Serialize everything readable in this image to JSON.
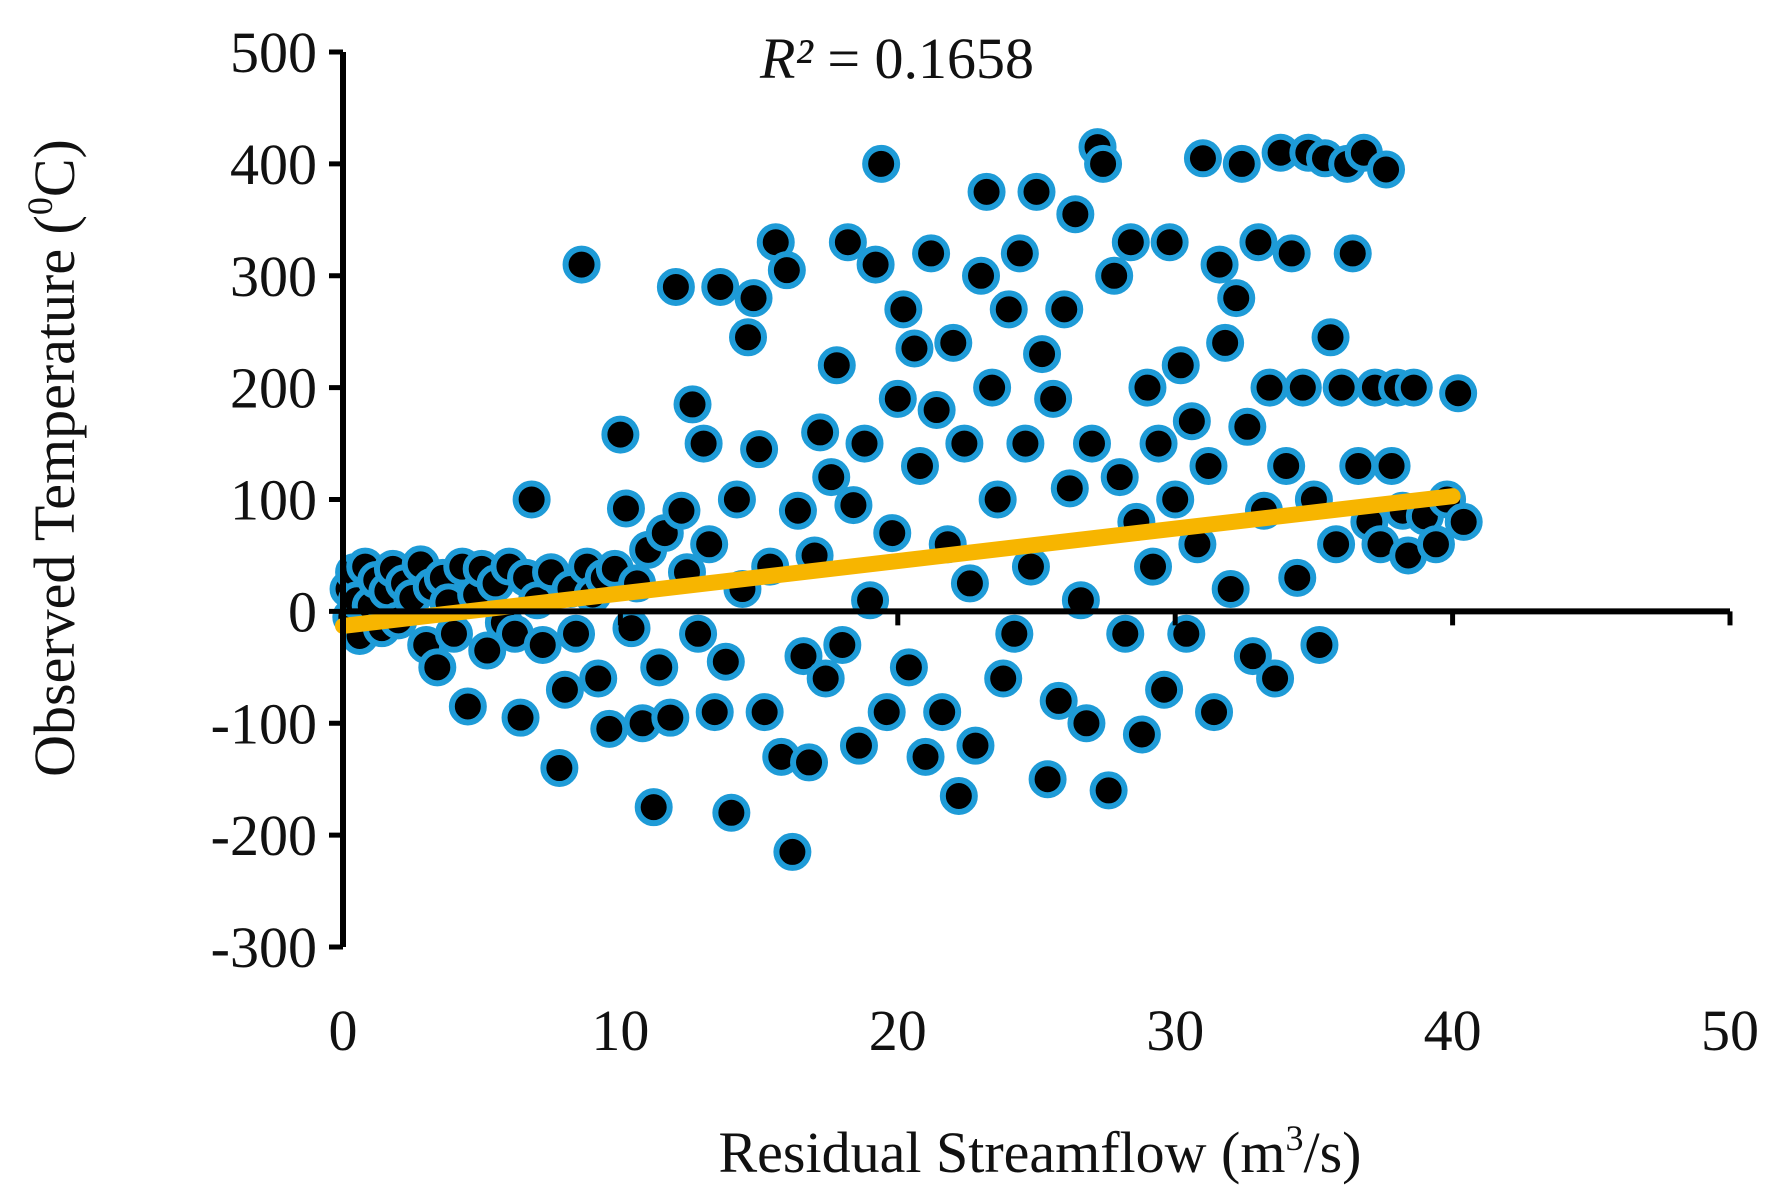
{
  "chart_data": {
    "type": "scatter",
    "title": "",
    "xlabel": "Residual Streamflow (m³/s)",
    "ylabel": "Observed  Temperature (⁰C)",
    "xlabel_parts": {
      "base": "Residual Streamflow (m",
      "superscript": "3",
      "suffix": "/s)"
    },
    "ylabel_parts": {
      "base": "Observed  Temperature (",
      "superscript": "0",
      "suffix": "C)"
    },
    "annotation": {
      "italic_part": "R²",
      "plain_part": " = 0.1658",
      "full": "R² = 0.1658"
    },
    "xlim": [
      0,
      50
    ],
    "ylim": [
      -300,
      500
    ],
    "x_ticks": [
      0,
      10,
      20,
      30,
      40,
      50
    ],
    "y_ticks": [
      -300,
      -200,
      -100,
      0,
      100,
      200,
      300,
      400,
      500
    ],
    "x_tick_labels": [
      "0",
      "10",
      "20",
      "30",
      "40",
      "50"
    ],
    "y_tick_labels": [
      "-300",
      "-200",
      "-100",
      "0",
      "100",
      "200",
      "300",
      "400",
      "500"
    ],
    "grid": false,
    "legend": "none",
    "trendline": {
      "type": "linear",
      "x": [
        0,
        40
      ],
      "y": [
        -13,
        103
      ],
      "r_squared": 0.1658
    },
    "series": [
      {
        "name": "Observed",
        "marker": "circle",
        "points": [
          [
            0.2,
            20
          ],
          [
            0.3,
            -5
          ],
          [
            0.4,
            35
          ],
          [
            0.5,
            10
          ],
          [
            0.6,
            -22
          ],
          [
            0.8,
            40
          ],
          [
            1.0,
            5
          ],
          [
            1.2,
            28
          ],
          [
            1.4,
            -15
          ],
          [
            1.6,
            18
          ],
          [
            1.8,
            38
          ],
          [
            2.0,
            -8
          ],
          [
            2.2,
            25
          ],
          [
            2.5,
            12
          ],
          [
            2.8,
            42
          ],
          [
            3.0,
            -30
          ],
          [
            3.2,
            22
          ],
          [
            3.4,
            -50
          ],
          [
            3.6,
            30
          ],
          [
            3.8,
            8
          ],
          [
            4.0,
            -20
          ],
          [
            4.3,
            40
          ],
          [
            4.5,
            -85
          ],
          [
            4.8,
            15
          ],
          [
            5.0,
            38
          ],
          [
            5.2,
            -35
          ],
          [
            5.5,
            25
          ],
          [
            5.8,
            -10
          ],
          [
            6.0,
            40
          ],
          [
            6.2,
            -20
          ],
          [
            6.4,
            -95
          ],
          [
            6.6,
            30
          ],
          [
            6.8,
            100
          ],
          [
            7.0,
            10
          ],
          [
            7.2,
            -30
          ],
          [
            7.5,
            35
          ],
          [
            7.8,
            -140
          ],
          [
            8.0,
            -70
          ],
          [
            8.2,
            20
          ],
          [
            8.4,
            -20
          ],
          [
            8.6,
            310
          ],
          [
            8.8,
            40
          ],
          [
            9.0,
            15
          ],
          [
            9.2,
            -60
          ],
          [
            9.4,
            30
          ],
          [
            9.6,
            -105
          ],
          [
            9.8,
            38
          ],
          [
            10.0,
            158
          ],
          [
            10.2,
            92
          ],
          [
            10.4,
            -15
          ],
          [
            10.6,
            25
          ],
          [
            10.8,
            -100
          ],
          [
            11.0,
            55
          ],
          [
            11.2,
            -175
          ],
          [
            11.4,
            -50
          ],
          [
            11.6,
            70
          ],
          [
            11.8,
            -95
          ],
          [
            12.0,
            290
          ],
          [
            12.2,
            90
          ],
          [
            12.4,
            35
          ],
          [
            12.6,
            185
          ],
          [
            12.8,
            -20
          ],
          [
            13.0,
            150
          ],
          [
            13.2,
            60
          ],
          [
            13.4,
            -90
          ],
          [
            13.6,
            290
          ],
          [
            13.8,
            -45
          ],
          [
            14.0,
            -180
          ],
          [
            14.2,
            100
          ],
          [
            14.4,
            20
          ],
          [
            14.6,
            245
          ],
          [
            14.8,
            280
          ],
          [
            15.0,
            145
          ],
          [
            15.2,
            -90
          ],
          [
            15.4,
            40
          ],
          [
            15.6,
            330
          ],
          [
            15.8,
            -130
          ],
          [
            16.0,
            305
          ],
          [
            16.2,
            -215
          ],
          [
            16.4,
            90
          ],
          [
            16.6,
            -40
          ],
          [
            16.8,
            -135
          ],
          [
            17.0,
            50
          ],
          [
            17.2,
            160
          ],
          [
            17.4,
            -60
          ],
          [
            17.6,
            120
          ],
          [
            17.8,
            220
          ],
          [
            18.0,
            -30
          ],
          [
            18.2,
            330
          ],
          [
            18.4,
            95
          ],
          [
            18.6,
            -120
          ],
          [
            18.8,
            150
          ],
          [
            19.0,
            10
          ],
          [
            19.2,
            310
          ],
          [
            19.4,
            400
          ],
          [
            19.6,
            -90
          ],
          [
            19.8,
            70
          ],
          [
            20.0,
            190
          ],
          [
            20.2,
            270
          ],
          [
            20.4,
            -50
          ],
          [
            20.6,
            235
          ],
          [
            20.8,
            130
          ],
          [
            21.0,
            -130
          ],
          [
            21.2,
            320
          ],
          [
            21.4,
            180
          ],
          [
            21.6,
            -90
          ],
          [
            21.8,
            60
          ],
          [
            22.0,
            240
          ],
          [
            22.2,
            -165
          ],
          [
            22.4,
            150
          ],
          [
            22.6,
            25
          ],
          [
            22.8,
            -120
          ],
          [
            23.0,
            300
          ],
          [
            23.2,
            375
          ],
          [
            23.4,
            200
          ],
          [
            23.6,
            100
          ],
          [
            23.8,
            -60
          ],
          [
            24.0,
            270
          ],
          [
            24.2,
            -20
          ],
          [
            24.4,
            320
          ],
          [
            24.6,
            150
          ],
          [
            24.8,
            40
          ],
          [
            25.0,
            375
          ],
          [
            25.2,
            230
          ],
          [
            25.4,
            -150
          ],
          [
            25.6,
            190
          ],
          [
            25.8,
            -80
          ],
          [
            26.0,
            270
          ],
          [
            26.2,
            110
          ],
          [
            26.4,
            355
          ],
          [
            26.6,
            10
          ],
          [
            26.8,
            -100
          ],
          [
            27.0,
            150
          ],
          [
            27.2,
            415
          ],
          [
            27.4,
            400
          ],
          [
            27.6,
            -160
          ],
          [
            27.8,
            300
          ],
          [
            28.0,
            120
          ],
          [
            28.2,
            -20
          ],
          [
            28.4,
            330
          ],
          [
            28.6,
            80
          ],
          [
            28.8,
            -110
          ],
          [
            29.0,
            200
          ],
          [
            29.2,
            40
          ],
          [
            29.4,
            150
          ],
          [
            29.6,
            -70
          ],
          [
            29.8,
            330
          ],
          [
            30.0,
            100
          ],
          [
            30.2,
            220
          ],
          [
            30.4,
            -20
          ],
          [
            30.6,
            170
          ],
          [
            30.8,
            60
          ],
          [
            31.0,
            405
          ],
          [
            31.2,
            130
          ],
          [
            31.4,
            -90
          ],
          [
            31.6,
            310
          ],
          [
            31.8,
            240
          ],
          [
            32.0,
            20
          ],
          [
            32.2,
            280
          ],
          [
            32.4,
            400
          ],
          [
            32.6,
            165
          ],
          [
            32.8,
            -40
          ],
          [
            33.0,
            330
          ],
          [
            33.2,
            90
          ],
          [
            33.4,
            200
          ],
          [
            33.6,
            -60
          ],
          [
            33.8,
            410
          ],
          [
            34.0,
            130
          ],
          [
            34.2,
            320
          ],
          [
            34.4,
            30
          ],
          [
            34.6,
            200
          ],
          [
            34.8,
            410
          ],
          [
            35.0,
            100
          ],
          [
            35.2,
            -30
          ],
          [
            35.4,
            405
          ],
          [
            35.6,
            245
          ],
          [
            35.8,
            60
          ],
          [
            36.0,
            200
          ],
          [
            36.2,
            400
          ],
          [
            36.4,
            320
          ],
          [
            36.6,
            130
          ],
          [
            36.8,
            410
          ],
          [
            37.0,
            80
          ],
          [
            37.2,
            200
          ],
          [
            37.4,
            60
          ],
          [
            37.6,
            395
          ],
          [
            37.8,
            130
          ],
          [
            38.0,
            200
          ],
          [
            38.2,
            90
          ],
          [
            38.4,
            50
          ],
          [
            38.6,
            200
          ],
          [
            39.0,
            85
          ],
          [
            39.4,
            60
          ],
          [
            39.8,
            100
          ],
          [
            40.2,
            195
          ],
          [
            40.4,
            80
          ]
        ]
      }
    ]
  }
}
